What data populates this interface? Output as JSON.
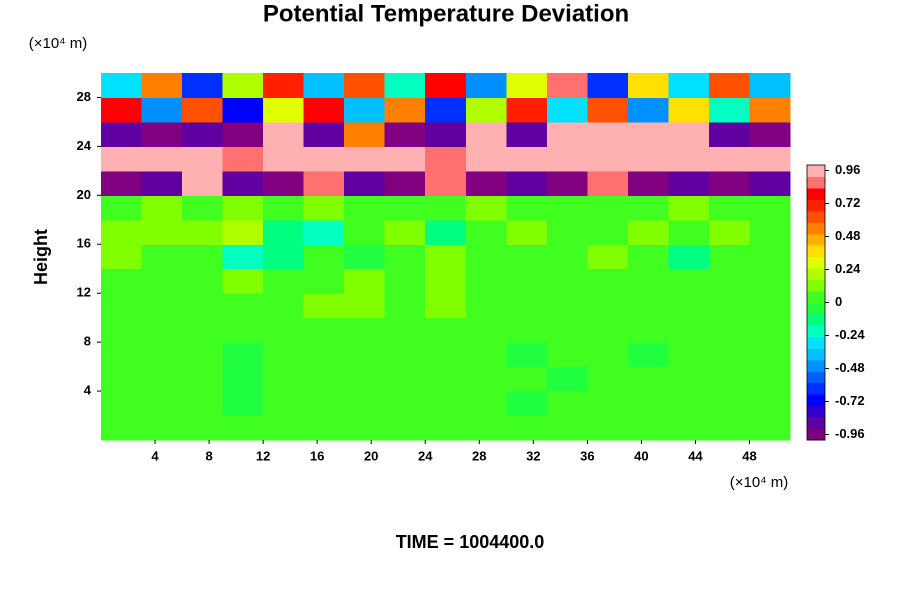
{
  "chart_data": {
    "type": "heatmap",
    "title": "Potential Temperature Deviation",
    "ylabel": "Height",
    "y_unit": "(×10⁴ m)",
    "x_unit": "(×10⁴ m)",
    "annotation": "TIME = 1004400.0",
    "xlim": [
      0,
      51
    ],
    "ylim": [
      0,
      30
    ],
    "xticks": [
      4,
      8,
      12,
      16,
      20,
      24,
      28,
      32,
      36,
      40,
      44,
      48
    ],
    "yticks": [
      4,
      8,
      12,
      16,
      20,
      24,
      28
    ],
    "clim": [
      -1,
      1
    ],
    "cticks": [
      -0.96,
      -0.72,
      -0.48,
      -0.24,
      0,
      0.24,
      0.48,
      0.72,
      0.96
    ],
    "colormap": [
      "#800080",
      "#6000a0",
      "#3000d0",
      "#0000ff",
      "#0030ff",
      "#0060ff",
      "#0090ff",
      "#00c0ff",
      "#00e0ff",
      "#00ffc0",
      "#00ff80",
      "#20ff40",
      "#40ff20",
      "#80ff00",
      "#b0ff00",
      "#e0ff00",
      "#ffe000",
      "#ffb000",
      "#ff8000",
      "#ff5000",
      "#ff2000",
      "#ff0000",
      "#ff7070",
      "#ffb0b0"
    ],
    "x": [
      1.5,
      4.5,
      7.5,
      10.5,
      13.5,
      16.5,
      19.5,
      22.5,
      25.5,
      28.5,
      31.5,
      34.5,
      37.5,
      40.5,
      43.5,
      46.5,
      49.5
    ],
    "y": [
      1,
      3,
      5,
      7,
      9,
      11,
      13,
      15,
      17,
      19,
      21,
      23,
      25,
      27,
      29
    ],
    "z": [
      [
        0.02,
        0,
        0.02,
        0.02,
        0,
        0.02,
        0.02,
        0,
        0.02,
        0.02,
        0,
        0.02,
        0.02,
        0,
        0.02,
        0.02,
        0
      ],
      [
        0,
        0.02,
        0,
        -0.02,
        0,
        0.02,
        0,
        0,
        0.02,
        0,
        -0.02,
        0,
        0.02,
        0,
        0,
        0.02,
        0
      ],
      [
        0,
        0,
        0.02,
        -0.05,
        0,
        0,
        0.02,
        0,
        0,
        0.02,
        0,
        -0.05,
        0,
        0,
        0.02,
        0,
        0
      ],
      [
        0.02,
        0,
        0,
        -0.05,
        0,
        0.02,
        0,
        0,
        0.02,
        0,
        -0.05,
        0,
        0,
        -0.05,
        0,
        0,
        0.02
      ],
      [
        0.02,
        0.02,
        0.05,
        0,
        0.02,
        0.05,
        0.02,
        0.02,
        0.05,
        0.02,
        0,
        0.02,
        0.02,
        0,
        0.02,
        0.02,
        0.02
      ],
      [
        0.05,
        0.05,
        0.08,
        0.02,
        0.08,
        0.1,
        0.12,
        0.08,
        0.15,
        0.08,
        0.02,
        0.05,
        0.05,
        0.02,
        0.05,
        0.05,
        0.05
      ],
      [
        0.08,
        0.08,
        0.05,
        0.1,
        0.08,
        0.05,
        0.1,
        0.08,
        0.12,
        0.08,
        0.05,
        0.08,
        0.05,
        0.08,
        0.05,
        0.08,
        0.05
      ],
      [
        0.1,
        0.08,
        0.05,
        -0.2,
        -0.1,
        0.02,
        -0.05,
        0.05,
        0.1,
        0.05,
        0.08,
        0.05,
        0.1,
        0.05,
        -0.1,
        0.05,
        0.08
      ],
      [
        0.1,
        0.12,
        0.15,
        0.2,
        -0.15,
        -0.2,
        0.05,
        0.1,
        -0.1,
        0.05,
        0.1,
        0.05,
        0.05,
        0.12,
        0.05,
        0.1,
        0.05
      ],
      [
        0.08,
        0.1,
        0.05,
        0.1,
        0.05,
        0.1,
        0.05,
        0.08,
        0.05,
        0.1,
        0.05,
        0.08,
        0.05,
        0.05,
        0.1,
        0.05,
        0.05
      ],
      [
        -0.95,
        -0.9,
        0.95,
        -0.9,
        -0.95,
        0.9,
        -0.9,
        -0.95,
        0.9,
        -0.95,
        -0.9,
        -0.95,
        0.9,
        -0.95,
        -0.9,
        -0.95,
        -0.9
      ],
      [
        0.95,
        0.97,
        0.95,
        0.9,
        0.97,
        0.95,
        0.97,
        0.95,
        0.9,
        0.97,
        0.95,
        0.97,
        0.95,
        0.97,
        0.95,
        0.97,
        0.95
      ],
      [
        -0.9,
        -0.95,
        -0.9,
        -0.95,
        0.95,
        -0.9,
        0.5,
        -0.95,
        -0.9,
        0.95,
        -0.9,
        0.95,
        0.97,
        0.95,
        0.97,
        -0.9,
        -0.95
      ],
      [
        0.8,
        -0.5,
        0.6,
        -0.7,
        0.3,
        0.8,
        -0.4,
        0.5,
        -0.6,
        0.2,
        0.7,
        -0.3,
        0.6,
        -0.5,
        0.4,
        -0.2,
        0.5
      ],
      [
        -0.3,
        0.5,
        -0.6,
        0.2,
        0.7,
        -0.4,
        0.6,
        -0.2,
        0.8,
        -0.5,
        0.3,
        0.9,
        -0.6,
        0.4,
        -0.3,
        0.6,
        -0.4
      ]
    ]
  }
}
